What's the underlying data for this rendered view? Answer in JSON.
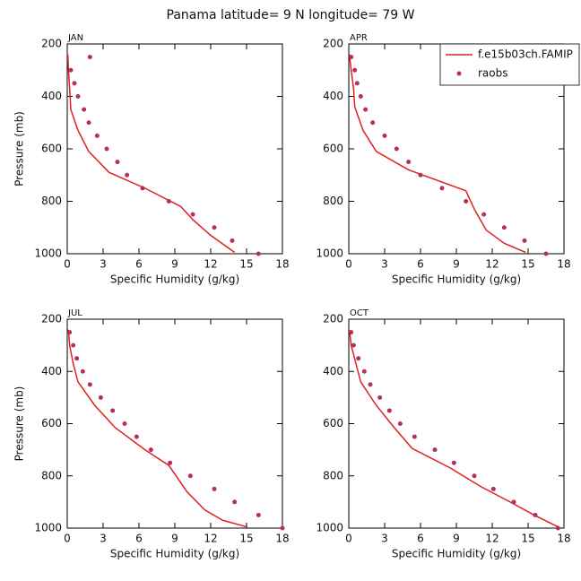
{
  "title": "Panama  latitude= 9 N longitude= 79 W",
  "chart_data": [
    {
      "type": "line",
      "title": "JAN",
      "xlabel": "Specific Humidity (g/kg)",
      "ylabel": "Pressure (mb)",
      "xlim": [
        0,
        18
      ],
      "xticks": [
        0,
        3,
        6,
        9,
        12,
        15,
        18
      ],
      "ylim": [
        1000,
        200
      ],
      "yticks": [
        200,
        400,
        600,
        800,
        1000
      ],
      "series": [
        {
          "name": "f.e15b03ch.FAMIP",
          "type": "line",
          "color": "#e0201f",
          "x": [
            0.05,
            0.1,
            0.2,
            0.3,
            0.9,
            1.8,
            3.5,
            6.5,
            9.5,
            10.5,
            12,
            14
          ],
          "values": [
            240,
            300,
            370,
            450,
            530,
            610,
            690,
            750,
            820,
            870,
            930,
            995
          ]
        },
        {
          "name": "raobs",
          "type": "scatter",
          "color": "#b5305a",
          "x": [
            1.9,
            0.3,
            0.6,
            0.9,
            1.4,
            1.8,
            2.5,
            3.3,
            4.2,
            5.0,
            6.3,
            8.5,
            10.5,
            12.3,
            13.8,
            16
          ],
          "values": [
            250,
            300,
            350,
            400,
            450,
            500,
            550,
            600,
            650,
            700,
            750,
            800,
            850,
            900,
            950,
            1000
          ]
        }
      ]
    },
    {
      "type": "line",
      "title": "APR",
      "xlabel": "Specific Humidity (g/kg)",
      "legend": "upper right",
      "xlim": [
        0,
        18
      ],
      "xticks": [
        0,
        3,
        6,
        9,
        12,
        15,
        18
      ],
      "ylim": [
        1000,
        200
      ],
      "yticks": [
        200,
        400,
        600,
        800,
        1000
      ],
      "series": [
        {
          "name": "f.e15b03ch.FAMIP",
          "type": "line",
          "color": "#e0201f",
          "x": [
            0.05,
            0.2,
            0.4,
            0.5,
            1.2,
            2.3,
            5,
            9.8,
            10.5,
            11.5,
            13,
            14.8
          ],
          "values": [
            240,
            300,
            370,
            440,
            530,
            610,
            680,
            760,
            830,
            910,
            960,
            995
          ]
        },
        {
          "name": "raobs",
          "type": "scatter",
          "color": "#b5305a",
          "x": [
            0.2,
            0.5,
            0.7,
            1.0,
            1.4,
            2.0,
            3.0,
            4.0,
            5.0,
            6.0,
            7.8,
            9.8,
            11.3,
            13,
            14.7,
            16.5
          ],
          "values": [
            250,
            300,
            350,
            400,
            450,
            500,
            550,
            600,
            650,
            700,
            750,
            800,
            850,
            900,
            950,
            1000
          ]
        }
      ]
    },
    {
      "type": "line",
      "title": "JUL",
      "xlabel": "Specific Humidity (g/kg)",
      "ylabel": "Pressure (mb)",
      "xlim": [
        0,
        18
      ],
      "xticks": [
        0,
        3,
        6,
        9,
        12,
        15,
        18
      ],
      "ylim": [
        1000,
        200
      ],
      "yticks": [
        200,
        400,
        600,
        800,
        1000
      ],
      "series": [
        {
          "name": "f.e15b03ch.FAMIP",
          "type": "line",
          "color": "#e0201f",
          "x": [
            0.1,
            0.2,
            0.5,
            0.9,
            2.3,
            4,
            6.5,
            8.5,
            10,
            11.5,
            13,
            15
          ],
          "values": [
            240,
            300,
            370,
            440,
            530,
            615,
            700,
            760,
            860,
            930,
            970,
            995
          ]
        },
        {
          "name": "raobs",
          "type": "scatter",
          "color": "#b5305a",
          "x": [
            0.2,
            0.5,
            0.8,
            1.3,
            1.9,
            2.8,
            3.8,
            4.8,
            5.8,
            7,
            8.6,
            10.3,
            12.3,
            14,
            16,
            18
          ],
          "values": [
            250,
            300,
            350,
            400,
            450,
            500,
            550,
            600,
            650,
            700,
            750,
            800,
            850,
            900,
            950,
            1000
          ]
        }
      ]
    },
    {
      "type": "line",
      "title": "OCT",
      "xlabel": "Specific Humidity (g/kg)",
      "xlim": [
        0,
        18
      ],
      "xticks": [
        0,
        3,
        6,
        9,
        12,
        15,
        18
      ],
      "ylim": [
        1000,
        200
      ],
      "yticks": [
        200,
        400,
        600,
        800,
        1000
      ],
      "series": [
        {
          "name": "f.e15b03ch.FAMIP",
          "type": "line",
          "color": "#e0201f",
          "x": [
            0.05,
            0.2,
            0.6,
            1,
            2.3,
            3.8,
            5.3,
            8.5,
            11,
            13.5,
            15.5,
            17.5
          ],
          "values": [
            240,
            300,
            370,
            440,
            530,
            615,
            695,
            770,
            840,
            900,
            950,
            995
          ]
        },
        {
          "name": "raobs",
          "type": "scatter",
          "color": "#b5305a",
          "x": [
            0.2,
            0.4,
            0.8,
            1.3,
            1.8,
            2.6,
            3.4,
            4.3,
            5.5,
            7.2,
            8.8,
            10.5,
            12.1,
            13.8,
            15.6,
            17.5
          ],
          "values": [
            250,
            300,
            350,
            400,
            450,
            500,
            550,
            600,
            650,
            700,
            750,
            800,
            850,
            900,
            950,
            1000
          ]
        }
      ]
    }
  ]
}
